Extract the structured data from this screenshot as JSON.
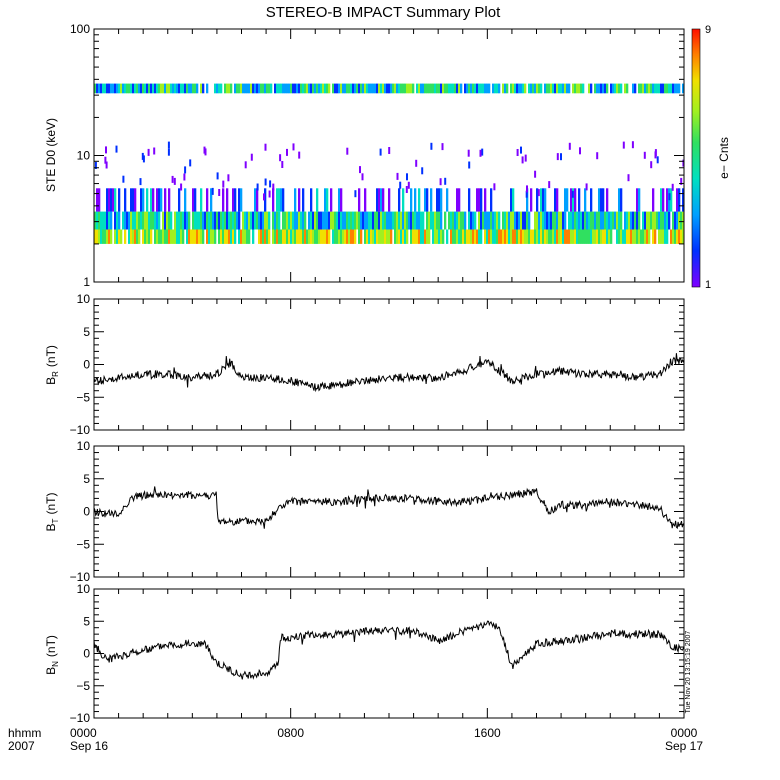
{
  "title": "STEREO-B IMPACT Summary Plot",
  "timestamp_label": "Tue Nov 20 13:15:19 2007",
  "x_axis": {
    "row_label_1": "hhmm",
    "row_label_2": "2007",
    "ticks": [
      {
        "hours": 0,
        "top": "0000",
        "bottom": "Sep 16"
      },
      {
        "hours": 8,
        "top": "0800",
        "bottom": ""
      },
      {
        "hours": 16,
        "top": "1600",
        "bottom": ""
      },
      {
        "hours": 24,
        "top": "0000",
        "bottom": "Sep 17"
      }
    ],
    "range_hours": [
      0,
      24
    ]
  },
  "colors": {
    "trace": "#000000",
    "colorbar": [
      "#7f00ff",
      "#0030ff",
      "#00a0ff",
      "#00e0c0",
      "#30e060",
      "#a0f020",
      "#f0e000",
      "#ff8000",
      "#ff1000"
    ]
  },
  "chart_data": [
    {
      "type": "heatmap",
      "ylabel": "STE D0 (keV)",
      "yscale": "log",
      "ylim": [
        1,
        100
      ],
      "yticks": [
        "1",
        "10",
        "100"
      ],
      "colorbar": {
        "label": "e− Cnts",
        "min_label": "1",
        "max_label": "9",
        "range": [
          1,
          9
        ]
      },
      "bands": [
        {
          "energy_range_keV": [
            2.0,
            2.6
          ],
          "typical_counts": 6
        },
        {
          "energy_range_keV": [
            2.6,
            3.6
          ],
          "typical_counts": 4
        },
        {
          "energy_range_keV": [
            3.6,
            5.5
          ],
          "typical_counts": 2
        },
        {
          "energy_range_keV": [
            31,
            37
          ],
          "typical_counts": 4
        }
      ]
    },
    {
      "type": "line",
      "ylabel_main": "B",
      "ylabel_sub": "R",
      "ylabel_unit": "(nT)",
      "ylim": [
        -10,
        10
      ],
      "yticks": [
        "10",
        "5",
        "0",
        "−5",
        "−10"
      ],
      "x": [
        0,
        1,
        2,
        3,
        4,
        5,
        5.5,
        6,
        7,
        8,
        9,
        10,
        11,
        12,
        13,
        14,
        15,
        16,
        16.5,
        17,
        18,
        19,
        20,
        21,
        22,
        23,
        23.5,
        24
      ],
      "y": [
        -2.5,
        -2.0,
        -1.5,
        -1.5,
        -2.0,
        -1.5,
        0.5,
        -2.0,
        -2.0,
        -2.5,
        -3.5,
        -3.0,
        -2.5,
        -2.0,
        -2.0,
        -2.0,
        -1.0,
        0.5,
        -1.0,
        -2.5,
        -1.5,
        -1.0,
        -1.5,
        -1.5,
        -2.0,
        -1.5,
        0.5,
        0.5
      ]
    },
    {
      "type": "line",
      "ylabel_main": "B",
      "ylabel_sub": "T",
      "ylabel_unit": "(nT)",
      "ylim": [
        -10,
        10
      ],
      "yticks": [
        "10",
        "5",
        "0",
        "−5",
        "−10"
      ],
      "x": [
        0,
        1,
        1.5,
        2,
        3,
        4,
        4.5,
        5,
        5.01,
        6,
        7,
        7.5,
        8,
        9,
        10,
        11,
        12,
        13,
        14,
        15,
        16,
        17,
        18,
        18.5,
        19,
        20,
        21,
        22,
        23,
        23.5,
        24
      ],
      "y": [
        0,
        -0.5,
        2.0,
        2.5,
        2.5,
        2.5,
        2.5,
        2.5,
        -1.5,
        -1.5,
        -1.5,
        0.5,
        1.5,
        1.5,
        1.5,
        2.0,
        2.0,
        2.0,
        1.5,
        1.5,
        2.0,
        2.5,
        3.0,
        0,
        1.0,
        1.0,
        1.5,
        1.0,
        0.5,
        -2.0,
        -2.0
      ]
    },
    {
      "type": "line",
      "ylabel_main": "B",
      "ylabel_sub": "N",
      "ylabel_unit": "(nT)",
      "ylim": [
        -10,
        10
      ],
      "yticks": [
        "10",
        "5",
        "0",
        "−5",
        "−10"
      ],
      "x": [
        0,
        0.5,
        1,
        2,
        3,
        4,
        4.5,
        5,
        5.5,
        6,
        7,
        7.5,
        7.6,
        8,
        9,
        10,
        11,
        12,
        13,
        14,
        15,
        16,
        16.5,
        17,
        18,
        19,
        20,
        21,
        22,
        23,
        23.5,
        24
      ],
      "y": [
        1.5,
        -1.0,
        -0.5,
        0.5,
        1.5,
        1.5,
        1.5,
        -1.5,
        -2.5,
        -3.5,
        -3.0,
        -1.5,
        2.5,
        2.5,
        3.0,
        3.0,
        3.5,
        3.5,
        3.5,
        2.0,
        3.5,
        4.5,
        4.0,
        -2.0,
        1.5,
        2.0,
        2.5,
        3.0,
        3.0,
        3.0,
        1.0,
        0.5
      ]
    }
  ]
}
